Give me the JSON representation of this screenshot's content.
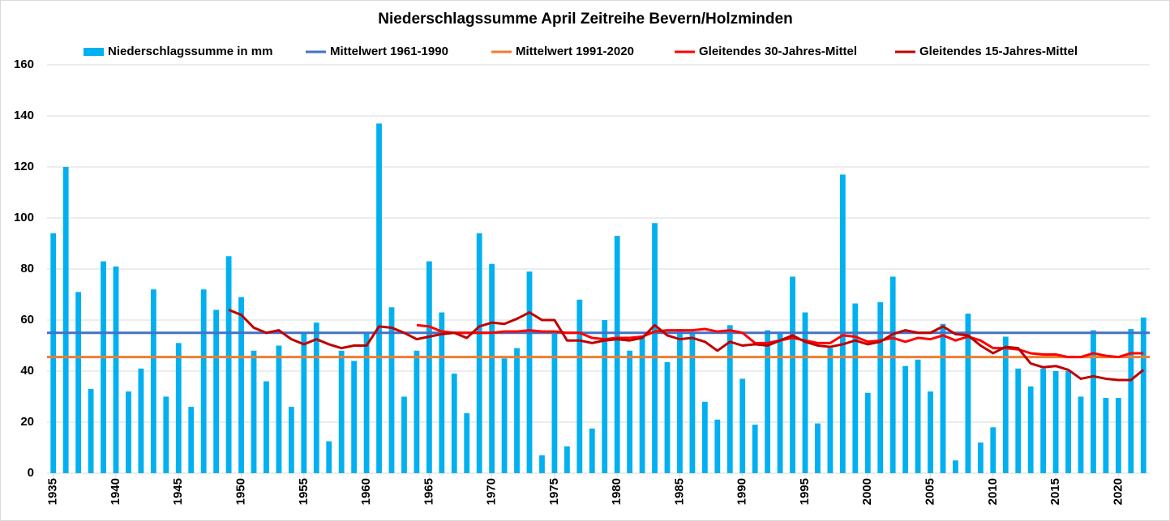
{
  "chart_data": {
    "type": "bar",
    "title": "Niederschlagssumme April Zeitreihe Bevern/Holzminden",
    "x": [
      1935,
      1936,
      1937,
      1938,
      1939,
      1940,
      1941,
      1942,
      1943,
      1944,
      1945,
      1946,
      1947,
      1948,
      1949,
      1950,
      1951,
      1952,
      1953,
      1954,
      1955,
      1956,
      1957,
      1958,
      1959,
      1960,
      1961,
      1962,
      1963,
      1964,
      1965,
      1966,
      1967,
      1968,
      1969,
      1970,
      1971,
      1972,
      1973,
      1974,
      1975,
      1976,
      1977,
      1978,
      1979,
      1980,
      1981,
      1982,
      1983,
      1984,
      1985,
      1986,
      1987,
      1988,
      1989,
      1990,
      1991,
      1992,
      1993,
      1994,
      1995,
      1996,
      1997,
      1998,
      1999,
      2000,
      2001,
      2002,
      2003,
      2004,
      2005,
      2006,
      2007,
      2008,
      2009,
      2010,
      2011,
      2012,
      2013,
      2014,
      2015,
      2016,
      2017,
      2018,
      2019,
      2020,
      2021,
      2022
    ],
    "xlim": [
      1934.5,
      2022.5
    ],
    "xticks": [
      1935,
      1940,
      1945,
      1950,
      1955,
      1960,
      1965,
      1970,
      1975,
      1980,
      1985,
      1990,
      1995,
      2000,
      2005,
      2010,
      2015,
      2020
    ],
    "ylim": [
      0,
      160
    ],
    "yticks": [
      0,
      20,
      40,
      60,
      80,
      100,
      120,
      140,
      160
    ],
    "grid": true,
    "series": [
      {
        "name": "Niederschlagssumme in mm",
        "type": "bar",
        "color": "#00b0f0",
        "values": [
          94,
          120,
          71,
          33,
          83,
          81,
          32,
          41,
          72,
          30,
          51,
          26,
          72,
          64,
          85,
          69,
          48,
          36,
          50,
          26,
          55,
          59,
          12.5,
          48,
          44,
          55,
          137,
          65,
          30,
          48,
          83,
          63,
          39,
          23.5,
          94,
          82,
          45,
          49,
          79,
          7,
          55,
          10.5,
          68,
          17.5,
          60,
          93,
          48,
          54,
          98,
          43.5,
          56.5,
          55,
          28,
          21,
          58,
          37,
          19,
          56,
          55,
          77,
          63,
          19.5,
          49,
          117,
          66.5,
          31.5,
          67,
          77,
          42,
          44.5,
          32,
          58.5,
          5,
          62.5,
          12,
          18,
          53.5,
          41,
          34,
          41,
          40,
          40,
          30,
          56,
          29.5,
          29.5,
          56.5,
          61
        ]
      },
      {
        "name": "Mittelwert 1961-1990",
        "type": "hline",
        "color": "#4472c4",
        "value": 55
      },
      {
        "name": "Mittelwert 1991-2020",
        "type": "hline",
        "color": "#ed7d31",
        "value": 45.5
      },
      {
        "name": "Gleitendes 30-Jahres-Mittel",
        "type": "line",
        "color": "#ff0000",
        "values": [
          null,
          null,
          null,
          null,
          null,
          null,
          null,
          null,
          null,
          null,
          null,
          null,
          null,
          null,
          null,
          null,
          null,
          null,
          null,
          null,
          null,
          null,
          null,
          null,
          null,
          null,
          null,
          null,
          null,
          58,
          57.5,
          55.5,
          55,
          55,
          55,
          55,
          55.5,
          55.5,
          56,
          55.5,
          55.5,
          55,
          55,
          53,
          52.5,
          53,
          53,
          53.5,
          55.5,
          56,
          56,
          56,
          56.5,
          55.5,
          56,
          55,
          51,
          51,
          52,
          53,
          52,
          51,
          51,
          54,
          53.5,
          51.5,
          52,
          53,
          51.5,
          53,
          52.5,
          54,
          52,
          53.5,
          52,
          49,
          49,
          48.5,
          47,
          46.5,
          46.5,
          45.5,
          45.5,
          47,
          46,
          45.5,
          47,
          47
        ]
      },
      {
        "name": "Gleitendes 15-Jahres-Mittel",
        "type": "line",
        "color": "#c00000",
        "values": [
          null,
          null,
          null,
          null,
          null,
          null,
          null,
          null,
          null,
          null,
          null,
          null,
          null,
          null,
          64,
          62,
          57,
          55,
          56,
          52.5,
          50.5,
          52.5,
          50.5,
          49,
          50,
          50,
          57.5,
          57,
          55,
          52.5,
          53.5,
          54.5,
          55,
          53,
          57.5,
          59,
          58.5,
          60.5,
          63,
          60,
          60,
          52,
          52,
          51,
          52,
          52.5,
          52,
          53,
          58,
          54,
          52.5,
          53,
          51.5,
          48,
          51.5,
          50,
          50.5,
          50,
          52,
          54,
          51.5,
          50,
          49.5,
          50.5,
          52,
          50.5,
          51.5,
          54.5,
          56,
          55,
          55,
          57.5,
          54.5,
          54,
          50,
          47,
          49.5,
          49,
          43,
          41.5,
          42,
          40.5,
          37,
          38,
          37,
          36.5,
          36.5,
          40.5
        ]
      }
    ]
  }
}
